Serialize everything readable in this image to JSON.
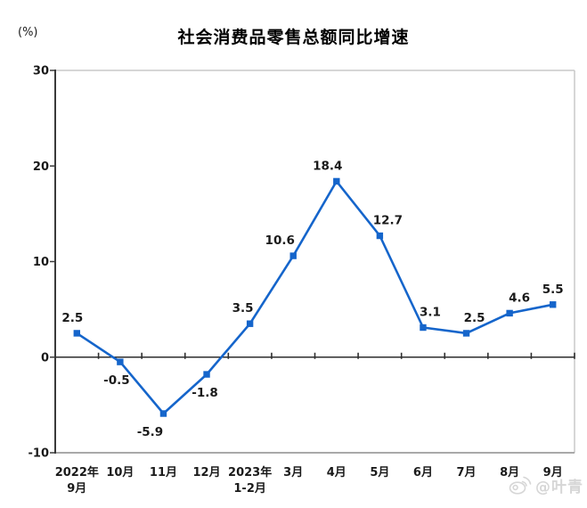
{
  "header": {
    "title": "社会消费品零售总额同比增速",
    "unit_label": "(%)"
  },
  "chart_data": {
    "type": "line",
    "title": "社会消费品零售总额同比增速",
    "ylabel": "(%)",
    "categories": [
      "2022年\n9月",
      "10月",
      "11月",
      "12月",
      "2023年\n1-2月",
      "3月",
      "4月",
      "5月",
      "6月",
      "7月",
      "8月",
      "9月"
    ],
    "values": [
      2.5,
      -0.5,
      -5.9,
      -1.8,
      3.5,
      10.6,
      18.4,
      12.7,
      3.1,
      2.5,
      4.6,
      5.5
    ],
    "point_labels": [
      "2.5",
      "-0.5",
      "-5.9",
      "-1.8",
      "3.5",
      "10.6",
      "18.4",
      "12.7",
      "3.1",
      "2.5",
      "4.6",
      "5.5"
    ],
    "ylim": [
      -10,
      30
    ],
    "yticks": [
      30,
      20,
      10,
      0,
      -10
    ],
    "grid": false,
    "legend": "none",
    "line_color": "#1565cb",
    "marker": "square",
    "axis_color": "#3a3a3a",
    "zero_line_color": "#2e2e2e",
    "plot_border_color": "#c8c8c8",
    "plot_border_bottom_color": "#a9a9a9",
    "label_side": [
      "above",
      "below",
      "below",
      "below",
      "above",
      "above",
      "above",
      "above",
      "above",
      "above",
      "above",
      "above"
    ],
    "label_dx": [
      -5,
      -4,
      -15,
      -2,
      -8,
      -15,
      -10,
      9,
      8,
      9,
      11,
      0
    ]
  },
  "watermark": {
    "icon": "weibo-icon",
    "text": "@叶青",
    "color": "#d6d6d6"
  }
}
